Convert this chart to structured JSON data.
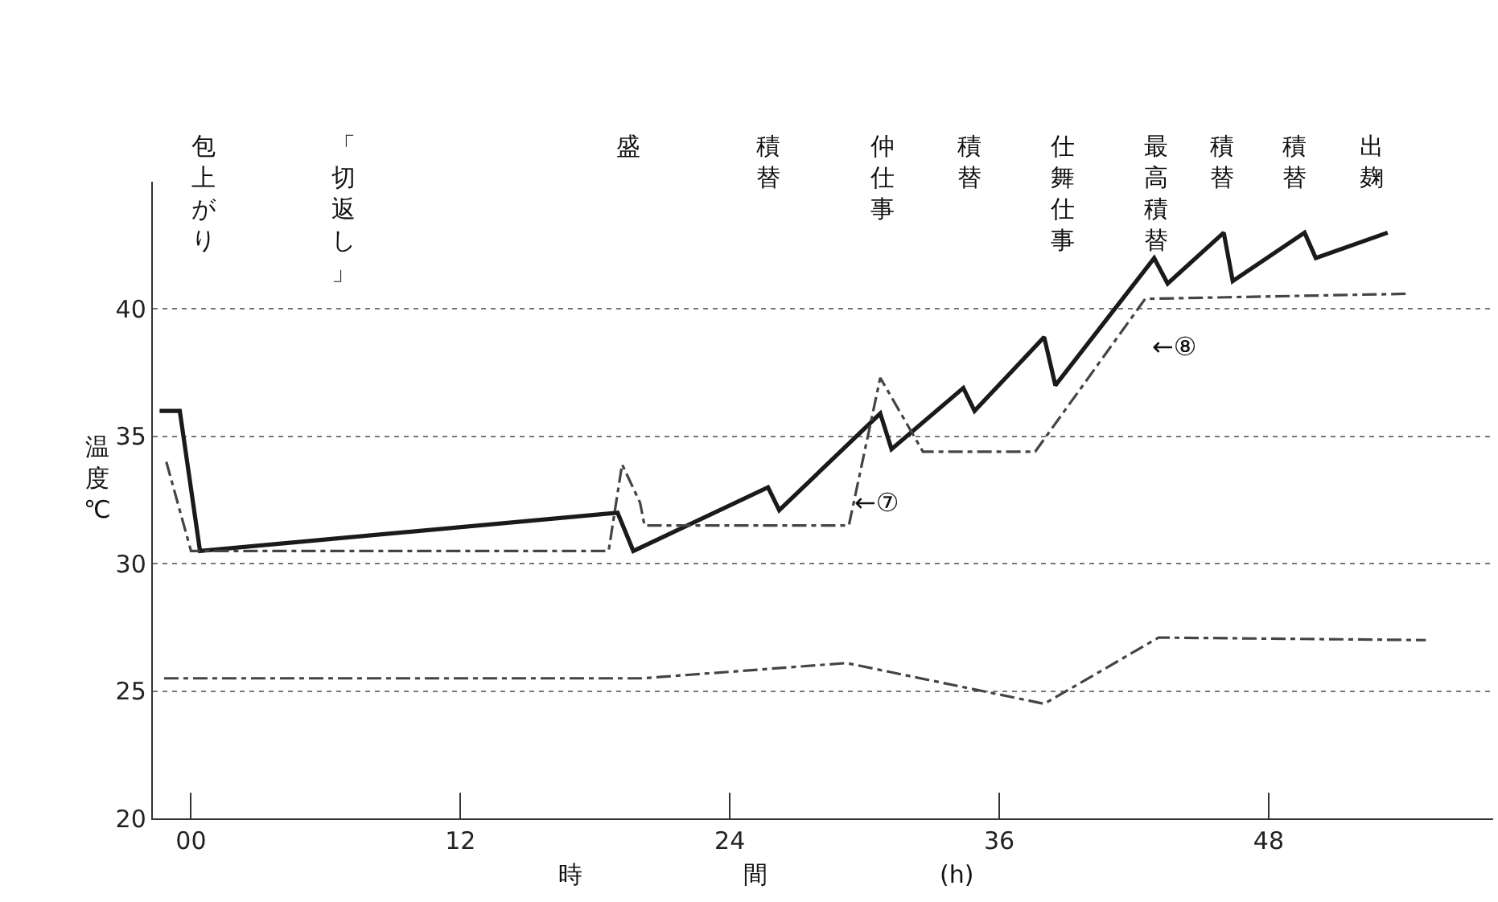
{
  "chart_data": {
    "type": "line",
    "xlabel": "時 間 (h)",
    "ylabel": "温度℃",
    "xlim": [
      -1.7,
      58
    ],
    "xticks": [
      {
        "value": 0,
        "label": "00"
      },
      12,
      24,
      36,
      48
    ],
    "ylim": [
      20,
      45
    ],
    "yticks": [
      20,
      25,
      30,
      35,
      40
    ],
    "grid": "y",
    "series": [
      {
        "color": "#1a1a1a",
        "line_style": "solid",
        "x": [
          -1.4,
          -0.5,
          0.4,
          19.0,
          19.7,
          25.7,
          26.2,
          30.7,
          31.2,
          34.4,
          34.9,
          38.0,
          38.5,
          42.9,
          43.5,
          46.0,
          46.4,
          49.6,
          50.1,
          53.3
        ],
        "values": [
          36,
          36,
          30.5,
          32,
          30.5,
          33,
          32.1,
          35.9,
          34.5,
          36.9,
          36,
          38.9,
          37,
          42,
          41,
          43,
          41.1,
          43,
          42,
          43
        ]
      },
      {
        "color": "#444444",
        "line_style": "dashed",
        "x": [
          -1.1,
          0,
          18.6,
          19.2,
          20.0,
          20.2,
          29.3,
          30.7,
          32.6,
          37.6,
          42.5,
          54.2
        ],
        "values": [
          34,
          30.5,
          30.5,
          33.9,
          32.4,
          31.5,
          31.5,
          37.3,
          34.4,
          34.4,
          40.4,
          40.6
        ]
      },
      {
        "color": "#444444",
        "line_style": "dashed",
        "x": [
          -1.2,
          20.1,
          29.2,
          38.0,
          43.1,
          55.0
        ],
        "values": [
          25.5,
          25.5,
          26.1,
          24.5,
          27.1,
          27
        ]
      }
    ],
    "annotations": [
      "包上がり",
      "「切返し」",
      "盛",
      "積替",
      "仲仕事",
      "積替",
      "仕舞仕事",
      "最高積替",
      "積替",
      "積替",
      "出麹",
      "←⑦",
      "←⑧"
    ]
  }
}
